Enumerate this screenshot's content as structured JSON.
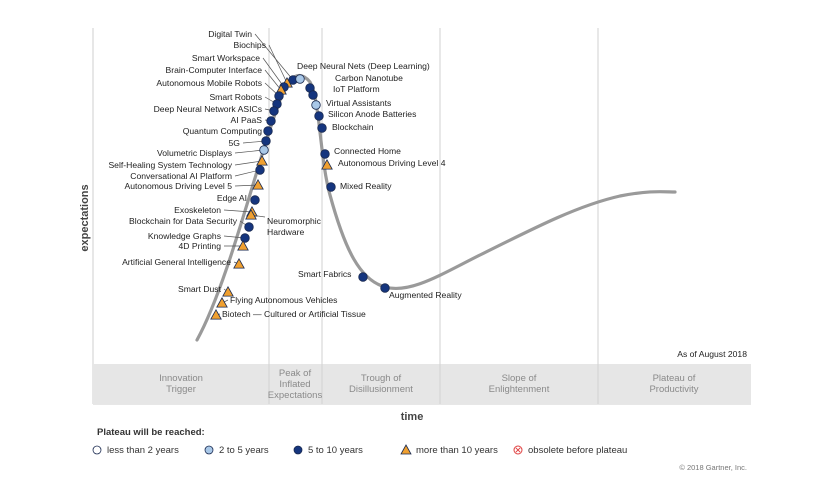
{
  "chart_data": {
    "type": "scatter",
    "title": "",
    "xlabel": "time",
    "ylabel": "expectations",
    "date_note": "As of August 2018",
    "copyright": "© 2018 Gartner, Inc.",
    "phases": [
      {
        "line1": "Innovation",
        "line2": "Trigger",
        "line3": ""
      },
      {
        "line1": "Peak of",
        "line2": "Inflated",
        "line3": "Expectations"
      },
      {
        "line1": "Trough of",
        "line2": "Disillusionment",
        "line3": ""
      },
      {
        "line1": "Slope of",
        "line2": "Enlightenment",
        "line3": ""
      },
      {
        "line1": "Plateau of",
        "line2": "Productivity",
        "line3": ""
      }
    ],
    "legend": {
      "title": "Plateau will be reached:",
      "items": [
        {
          "name": "less than 2 years",
          "marker": "circle",
          "color": "#ffffff"
        },
        {
          "name": "2 to 5 years",
          "marker": "circle",
          "color": "#a9c8e8"
        },
        {
          "name": "5 to 10 years",
          "marker": "circle",
          "color": "#15357e"
        },
        {
          "name": "more than 10 years",
          "marker": "triangle",
          "color": "#f0a030"
        },
        {
          "name": "obsolete before plateau",
          "marker": "x-circle",
          "color": "#e04040"
        }
      ]
    },
    "colors": {
      "curve": "#9a9a9a",
      "circle_2to5": "#a9c8e8",
      "circle_5to10": "#15357e",
      "triangle": "#f0a030",
      "marker_stroke": "#1a2a50"
    },
    "technologies": [
      {
        "name": "Digital Twin",
        "category": "5-10"
      },
      {
        "name": "Biochips",
        "category": "10+"
      },
      {
        "name": "Smart Workspace",
        "category": "5-10"
      },
      {
        "name": "Brain-Computer Interface",
        "category": "10+"
      },
      {
        "name": "Autonomous Mobile Robots",
        "category": "5-10"
      },
      {
        "name": "Smart Robots",
        "category": "5-10"
      },
      {
        "name": "Deep Neural Network ASICs",
        "category": "5-10"
      },
      {
        "name": "AI PaaS",
        "category": "5-10"
      },
      {
        "name": "Quantum Computing",
        "category": "5-10"
      },
      {
        "name": "5G",
        "category": "5-10"
      },
      {
        "name": "Volumetric Displays",
        "category": "2-5"
      },
      {
        "name": "Self-Healing System Technology",
        "category": "10+"
      },
      {
        "name": "Conversational AI Platform",
        "category": "5-10"
      },
      {
        "name": "Autonomous Driving Level 5",
        "category": "10+"
      },
      {
        "name": "Edge AI",
        "category": "5-10"
      },
      {
        "name": "Exoskeleton",
        "category": "10+"
      },
      {
        "name": "Neuromorphic Hardware",
        "category": "10+"
      },
      {
        "name": "Blockchain for Data Security",
        "category": "5-10"
      },
      {
        "name": "Knowledge Graphs",
        "category": "5-10"
      },
      {
        "name": "4D Printing",
        "category": "10+"
      },
      {
        "name": "Artificial General Intelligence",
        "category": "10+"
      },
      {
        "name": "Smart Dust",
        "category": "10+"
      },
      {
        "name": "Flying Autonomous Vehicles",
        "category": "10+"
      },
      {
        "name": "Biotech — Cultured or Artificial Tissue",
        "category": "10+"
      },
      {
        "name": "Deep Neural Nets (Deep Learning)",
        "category": "2-5"
      },
      {
        "name": "Carbon Nanotube",
        "category": "5-10"
      },
      {
        "name": "IoT Platform",
        "category": "5-10"
      },
      {
        "name": "Virtual Assistants",
        "category": "2-5"
      },
      {
        "name": "Silicon Anode Batteries",
        "category": "5-10"
      },
      {
        "name": "Blockchain",
        "category": "5-10"
      },
      {
        "name": "Connected Home",
        "category": "5-10"
      },
      {
        "name": "Autonomous Driving Level 4",
        "category": "10+"
      },
      {
        "name": "Mixed Reality",
        "category": "5-10"
      },
      {
        "name": "Smart Fabrics",
        "category": "5-10"
      },
      {
        "name": "Augmented Reality",
        "category": "5-10"
      }
    ]
  }
}
